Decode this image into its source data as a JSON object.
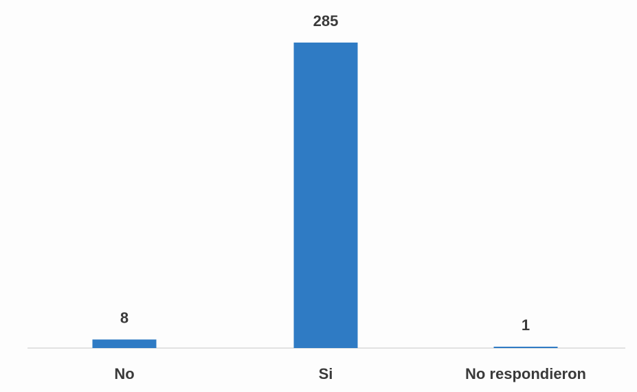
{
  "chart_data": {
    "type": "bar",
    "categories": [
      "No",
      "Si",
      "No respondieron"
    ],
    "values": [
      8,
      285,
      1
    ],
    "title": "",
    "xlabel": "",
    "ylabel": "",
    "ylim": [
      0,
      285
    ],
    "grid": false,
    "legend": "none",
    "colors": {
      "bar": "#2f7bc4",
      "baseline": "#d9d9d9",
      "text": "#3a3a3a"
    }
  }
}
